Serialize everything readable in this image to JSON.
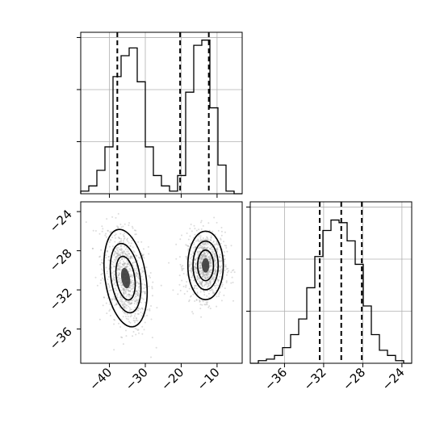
{
  "chart_data": {
    "type": "corner",
    "title": "",
    "panels": [
      {
        "id": "hist_x",
        "type": "histogram",
        "xlim": [
          -48,
          -3
        ],
        "ylim": [
          0,
          310
        ],
        "ygrid_values": [
          100,
          200,
          300
        ],
        "edges": [
          -48,
          -45.75,
          -43.5,
          -41.25,
          -39,
          -36.75,
          -34.5,
          -32.25,
          -30,
          -27.75,
          -25.5,
          -23.25,
          -21,
          -18.75,
          -16.5,
          -14.25,
          -12,
          -9.75,
          -7.5,
          -5.25,
          -3
        ],
        "counts": [
          5,
          15,
          45,
          90,
          225,
          265,
          280,
          215,
          90,
          35,
          15,
          5,
          35,
          195,
          285,
          295,
          165,
          55,
          5,
          0
        ],
        "quantile_lines": [
          -37.8,
          -20.3,
          -12.3
        ],
        "xticks": [
          -40,
          -30,
          -20,
          -10
        ],
        "xtick_labels": [
          "−40",
          "−30",
          "−20",
          "−10"
        ]
      },
      {
        "id": "scatter_xy",
        "type": "2d-density",
        "xlim": [
          -48,
          -3
        ],
        "ylim": [
          -39.5,
          -23
        ],
        "yticks": [
          -24,
          -28,
          -32,
          -36
        ],
        "ytick_labels": [
          "−24",
          "−28",
          "−32",
          "−36"
        ],
        "xticks": [
          -40,
          -30,
          -20,
          -10
        ],
        "xtick_labels": [
          "−40",
          "−30",
          "−20",
          "−10"
        ],
        "clusters": [
          {
            "center": [
              -35.5,
              -30.8
            ],
            "spread": [
              3.0,
              2.3
            ],
            "tilt": -0.35
          },
          {
            "center": [
              -13.2,
              -29.5
            ],
            "spread": [
              2.6,
              1.6
            ],
            "tilt": 0
          }
        ]
      },
      {
        "id": "hist_y",
        "type": "histogram",
        "xlim": [
          -39.5,
          -23
        ],
        "ylim": [
          0,
          310
        ],
        "ygrid_values": [
          100,
          200,
          300
        ],
        "edges": [
          -39.5,
          -38.675,
          -37.85,
          -37.025,
          -36.2,
          -35.375,
          -34.55,
          -33.725,
          -32.9,
          -32.075,
          -31.25,
          -30.425,
          -29.6,
          -28.775,
          -27.95,
          -27.125,
          -26.3,
          -25.475,
          -24.65,
          -23.825,
          -23
        ],
        "counts": [
          0,
          5,
          8,
          15,
          30,
          55,
          85,
          145,
          205,
          255,
          275,
          270,
          235,
          190,
          110,
          55,
          25,
          15,
          5,
          0
        ],
        "quantile_lines": [
          -32.4,
          -30.2,
          -28.1
        ],
        "xticks": [
          -36,
          -32,
          -28,
          -24
        ],
        "xtick_labels": [
          "−36",
          "−32",
          "−28",
          "−24"
        ]
      }
    ]
  }
}
